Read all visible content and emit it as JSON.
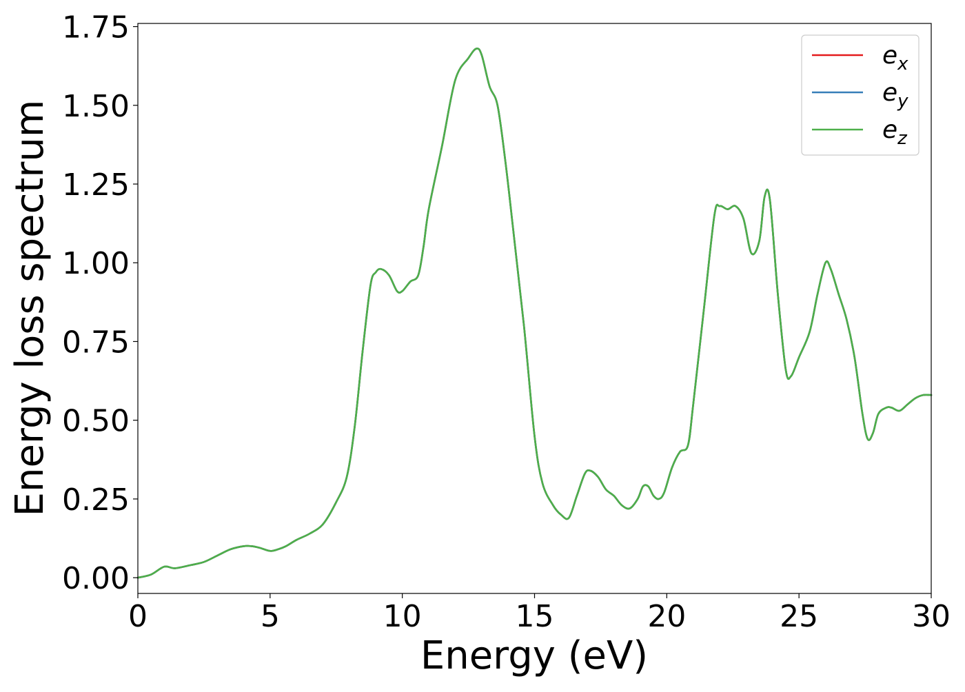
{
  "chart_data": {
    "type": "line",
    "title": "",
    "xlabel": "Energy (eV)",
    "ylabel": "Energy loss spectrum",
    "xlim": [
      0,
      30
    ],
    "ylim": [
      -0.05,
      1.76
    ],
    "xticks": [
      0,
      5,
      10,
      15,
      20,
      25,
      30
    ],
    "xtick_labels": [
      "0",
      "5",
      "10",
      "15",
      "20",
      "25",
      "30"
    ],
    "yticks": [
      0,
      0.25,
      0.5,
      0.75,
      1.0,
      1.25,
      1.5,
      1.75
    ],
    "ytick_labels": [
      "0.00",
      "0.25",
      "0.50",
      "0.75",
      "1.00",
      "1.25",
      "1.50",
      "1.75"
    ],
    "grid": false,
    "legend_position": "top-right",
    "series": [
      {
        "name": "e_x",
        "legend_base": "e",
        "legend_sub": "x",
        "color": "#e41a1c",
        "x": [
          0,
          0.5,
          1.0,
          1.4,
          2.0,
          2.5,
          3.0,
          3.5,
          4.0,
          4.3,
          4.6,
          5.0,
          5.3,
          5.6,
          6.0,
          6.5,
          7.0,
          7.5,
          7.9,
          8.2,
          8.5,
          8.8,
          9.0,
          9.2,
          9.5,
          9.8,
          10.0,
          10.3,
          10.6,
          10.8,
          11.0,
          11.5,
          12.0,
          12.5,
          12.8,
          13.0,
          13.3,
          13.6,
          13.9,
          14.2,
          14.6,
          15.0,
          15.3,
          15.7,
          16.0,
          16.3,
          16.6,
          16.9,
          17.1,
          17.4,
          17.7,
          18.0,
          18.3,
          18.6,
          18.9,
          19.1,
          19.3,
          19.5,
          19.7,
          19.9,
          20.2,
          20.5,
          20.8,
          21.0,
          21.4,
          21.8,
          22.0,
          22.3,
          22.6,
          22.9,
          23.2,
          23.5,
          23.7,
          23.9,
          24.2,
          24.5,
          24.7,
          25.0,
          25.4,
          25.7,
          26.0,
          26.2,
          26.5,
          26.8,
          27.1,
          27.4,
          27.6,
          27.8,
          28.0,
          28.3,
          28.5,
          28.8,
          29.1,
          29.4,
          29.7,
          30.0
        ],
        "y": [
          0.0,
          0.01,
          0.035,
          0.03,
          0.04,
          0.05,
          0.07,
          0.09,
          0.1,
          0.1,
          0.095,
          0.085,
          0.09,
          0.1,
          0.12,
          0.14,
          0.17,
          0.24,
          0.32,
          0.48,
          0.72,
          0.93,
          0.97,
          0.98,
          0.96,
          0.91,
          0.91,
          0.94,
          0.96,
          1.05,
          1.17,
          1.37,
          1.58,
          1.65,
          1.68,
          1.66,
          1.56,
          1.5,
          1.32,
          1.1,
          0.8,
          0.45,
          0.3,
          0.23,
          0.2,
          0.19,
          0.26,
          0.33,
          0.34,
          0.32,
          0.28,
          0.26,
          0.23,
          0.22,
          0.25,
          0.29,
          0.29,
          0.26,
          0.25,
          0.27,
          0.35,
          0.4,
          0.42,
          0.55,
          0.85,
          1.15,
          1.18,
          1.17,
          1.18,
          1.14,
          1.03,
          1.07,
          1.21,
          1.2,
          0.9,
          0.66,
          0.64,
          0.7,
          0.78,
          0.9,
          1.0,
          0.98,
          0.9,
          0.82,
          0.7,
          0.52,
          0.44,
          0.46,
          0.52,
          0.54,
          0.54,
          0.53,
          0.55,
          0.57,
          0.58,
          0.58
        ]
      },
      {
        "name": "e_y",
        "legend_base": "e",
        "legend_sub": "y",
        "color": "#377eb8",
        "x": [
          0,
          0.5,
          1.0,
          1.4,
          2.0,
          2.5,
          3.0,
          3.5,
          4.0,
          4.3,
          4.6,
          5.0,
          5.3,
          5.6,
          6.0,
          6.5,
          7.0,
          7.5,
          7.9,
          8.2,
          8.5,
          8.8,
          9.0,
          9.2,
          9.5,
          9.8,
          10.0,
          10.3,
          10.6,
          10.8,
          11.0,
          11.5,
          12.0,
          12.5,
          12.8,
          13.0,
          13.3,
          13.6,
          13.9,
          14.2,
          14.6,
          15.0,
          15.3,
          15.7,
          16.0,
          16.3,
          16.6,
          16.9,
          17.1,
          17.4,
          17.7,
          18.0,
          18.3,
          18.6,
          18.9,
          19.1,
          19.3,
          19.5,
          19.7,
          19.9,
          20.2,
          20.5,
          20.8,
          21.0,
          21.4,
          21.8,
          22.0,
          22.3,
          22.6,
          22.9,
          23.2,
          23.5,
          23.7,
          23.9,
          24.2,
          24.5,
          24.7,
          25.0,
          25.4,
          25.7,
          26.0,
          26.2,
          26.5,
          26.8,
          27.1,
          27.4,
          27.6,
          27.8,
          28.0,
          28.3,
          28.5,
          28.8,
          29.1,
          29.4,
          29.7,
          30.0
        ],
        "y": [
          0.0,
          0.01,
          0.035,
          0.03,
          0.04,
          0.05,
          0.07,
          0.09,
          0.1,
          0.1,
          0.095,
          0.085,
          0.09,
          0.1,
          0.12,
          0.14,
          0.17,
          0.24,
          0.32,
          0.48,
          0.72,
          0.93,
          0.97,
          0.98,
          0.96,
          0.91,
          0.91,
          0.94,
          0.96,
          1.05,
          1.17,
          1.37,
          1.58,
          1.65,
          1.68,
          1.66,
          1.56,
          1.5,
          1.32,
          1.1,
          0.8,
          0.45,
          0.3,
          0.23,
          0.2,
          0.19,
          0.26,
          0.33,
          0.34,
          0.32,
          0.28,
          0.26,
          0.23,
          0.22,
          0.25,
          0.29,
          0.29,
          0.26,
          0.25,
          0.27,
          0.35,
          0.4,
          0.42,
          0.55,
          0.85,
          1.15,
          1.18,
          1.17,
          1.18,
          1.14,
          1.03,
          1.07,
          1.21,
          1.2,
          0.9,
          0.66,
          0.64,
          0.7,
          0.78,
          0.9,
          1.0,
          0.98,
          0.9,
          0.82,
          0.7,
          0.52,
          0.44,
          0.46,
          0.52,
          0.54,
          0.54,
          0.53,
          0.55,
          0.57,
          0.58,
          0.58
        ]
      },
      {
        "name": "e_z",
        "legend_base": "e",
        "legend_sub": "z",
        "color": "#4daf4a",
        "x": [
          0,
          0.5,
          1.0,
          1.4,
          2.0,
          2.5,
          3.0,
          3.5,
          4.0,
          4.3,
          4.6,
          5.0,
          5.3,
          5.6,
          6.0,
          6.5,
          7.0,
          7.5,
          7.9,
          8.2,
          8.5,
          8.8,
          9.0,
          9.2,
          9.5,
          9.8,
          10.0,
          10.3,
          10.6,
          10.8,
          11.0,
          11.5,
          12.0,
          12.5,
          12.8,
          13.0,
          13.3,
          13.6,
          13.9,
          14.2,
          14.6,
          15.0,
          15.3,
          15.7,
          16.0,
          16.3,
          16.6,
          16.9,
          17.1,
          17.4,
          17.7,
          18.0,
          18.3,
          18.6,
          18.9,
          19.1,
          19.3,
          19.5,
          19.7,
          19.9,
          20.2,
          20.5,
          20.8,
          21.0,
          21.4,
          21.8,
          22.0,
          22.3,
          22.6,
          22.9,
          23.2,
          23.5,
          23.7,
          23.9,
          24.2,
          24.5,
          24.7,
          25.0,
          25.4,
          25.7,
          26.0,
          26.2,
          26.5,
          26.8,
          27.1,
          27.4,
          27.6,
          27.8,
          28.0,
          28.3,
          28.5,
          28.8,
          29.1,
          29.4,
          29.7,
          30.0
        ],
        "y": [
          0.0,
          0.01,
          0.035,
          0.03,
          0.04,
          0.05,
          0.07,
          0.09,
          0.1,
          0.1,
          0.095,
          0.085,
          0.09,
          0.1,
          0.12,
          0.14,
          0.17,
          0.24,
          0.32,
          0.48,
          0.72,
          0.93,
          0.97,
          0.98,
          0.96,
          0.91,
          0.91,
          0.94,
          0.96,
          1.05,
          1.17,
          1.37,
          1.58,
          1.65,
          1.68,
          1.66,
          1.56,
          1.5,
          1.32,
          1.1,
          0.8,
          0.45,
          0.3,
          0.23,
          0.2,
          0.19,
          0.26,
          0.33,
          0.34,
          0.32,
          0.28,
          0.26,
          0.23,
          0.22,
          0.25,
          0.29,
          0.29,
          0.26,
          0.25,
          0.27,
          0.35,
          0.4,
          0.42,
          0.55,
          0.85,
          1.15,
          1.18,
          1.17,
          1.18,
          1.14,
          1.03,
          1.07,
          1.21,
          1.2,
          0.9,
          0.66,
          0.64,
          0.7,
          0.78,
          0.9,
          1.0,
          0.98,
          0.9,
          0.82,
          0.7,
          0.52,
          0.44,
          0.46,
          0.52,
          0.54,
          0.54,
          0.53,
          0.55,
          0.57,
          0.58,
          0.58
        ]
      }
    ]
  }
}
